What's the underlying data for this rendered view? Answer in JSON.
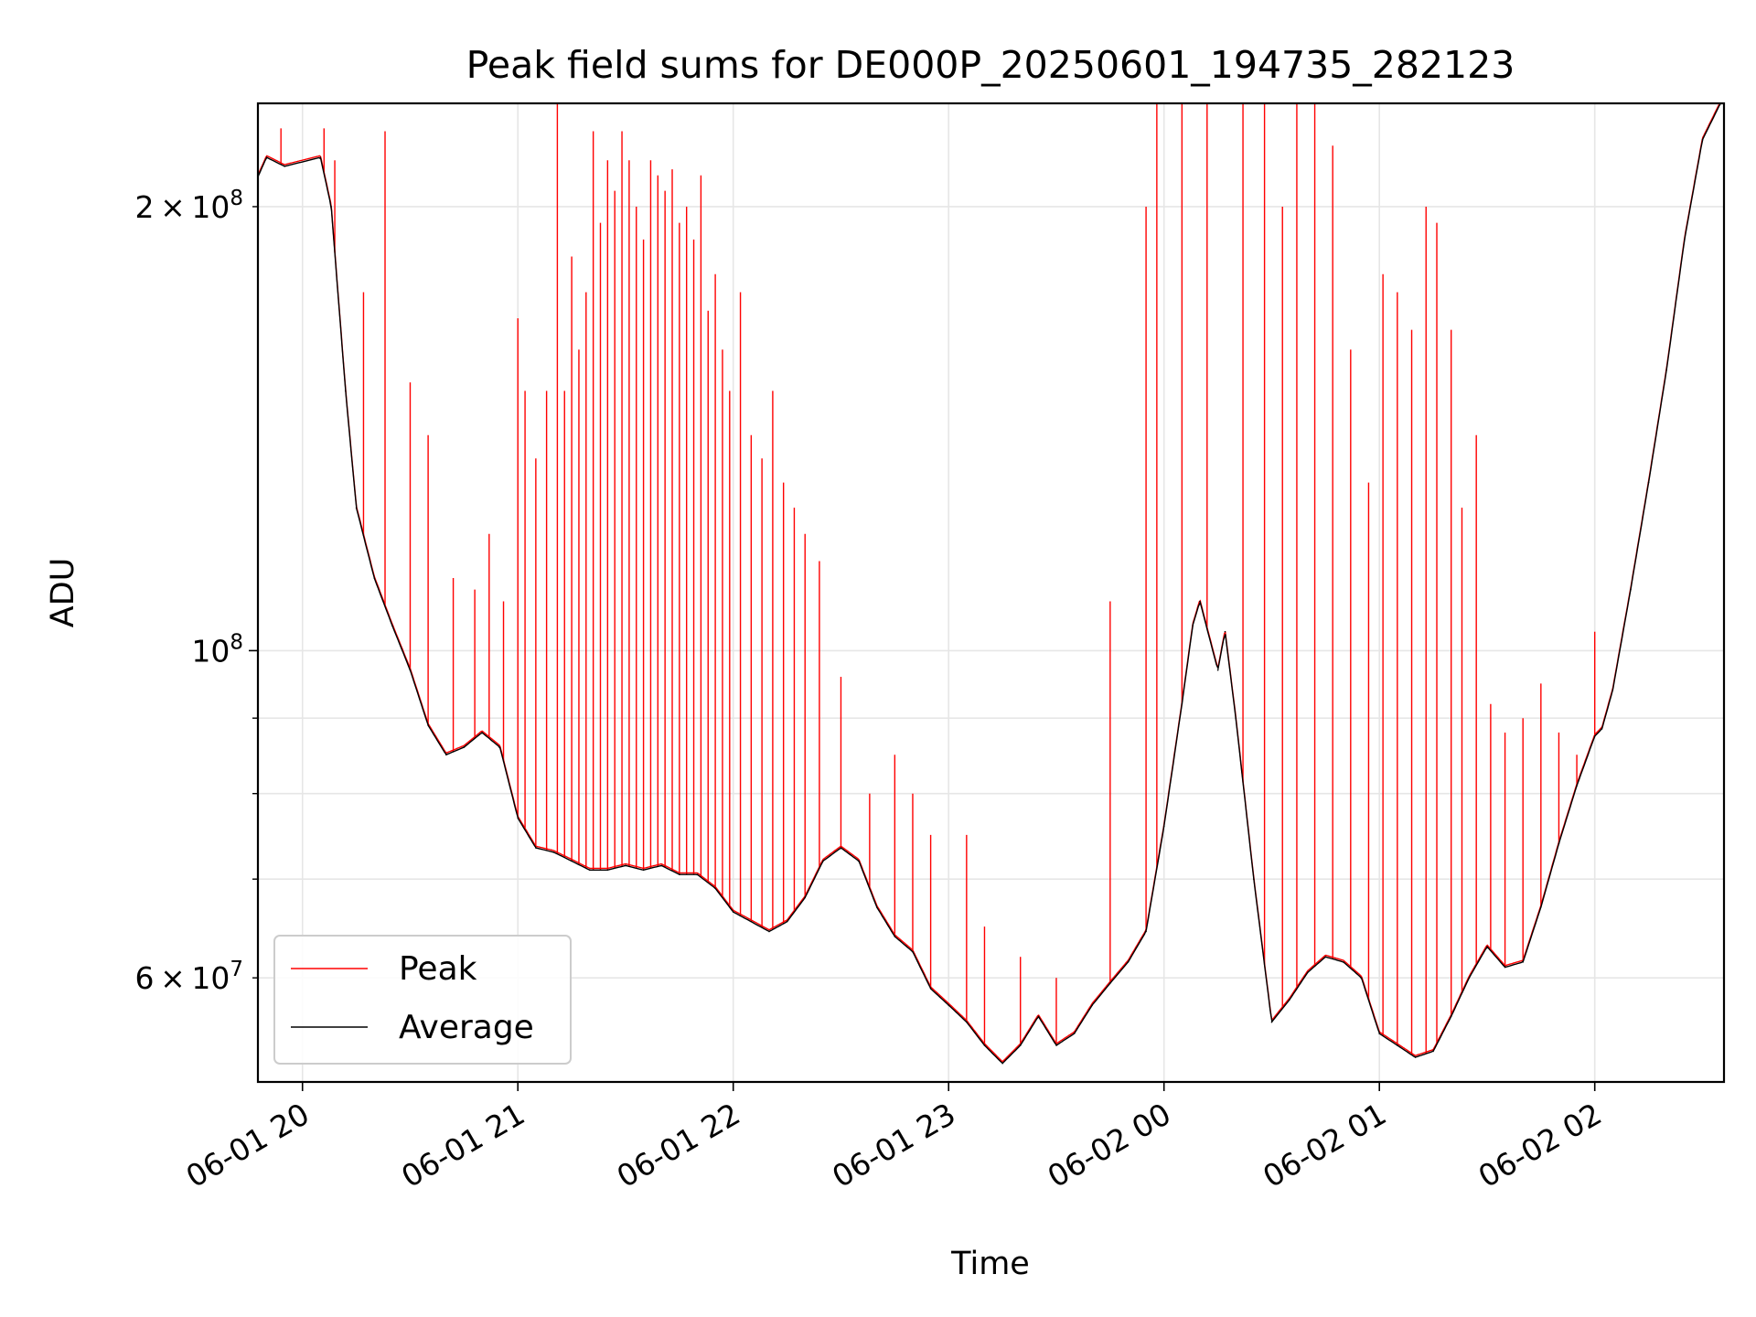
{
  "chart_data": {
    "type": "line",
    "title": "Peak field sums for DE000P_20250601_194735_282123",
    "xlabel": "Time",
    "ylabel": "ADU",
    "x_range": [
      "2025-06-01 19:47:35",
      "2025-06-02 02:36:00"
    ],
    "ylim": [
      51000000,
      235000000
    ],
    "yscale": "log",
    "grid": true,
    "legend_position": "lower-left",
    "x_ticks": [
      "06-01 20",
      "06-01 21",
      "06-01 22",
      "06-01 23",
      "06-02 00",
      "06-02 01",
      "06-02 02"
    ],
    "y_ticks_major": [
      {
        "value": 100000000,
        "mantissa": "",
        "base": "10",
        "exp": "8"
      }
    ],
    "y_ticks_minor_labeled": [
      {
        "value": 200000000,
        "mantissa": "2",
        "base": "10",
        "exp": "8"
      },
      {
        "value": 60000000,
        "mantissa": "6",
        "base": "10",
        "exp": "7"
      }
    ],
    "y_ticks_minor_unlabeled": [
      70000000,
      80000000,
      90000000
    ],
    "series": [
      {
        "name": "Average",
        "color": "#000000",
        "points": [
          [
            "2025-06-01 19:47",
            208000000
          ],
          [
            "2025-06-01 19:50",
            216000000
          ],
          [
            "2025-06-01 19:55",
            213000000
          ],
          [
            "2025-06-01 20:05",
            216000000
          ],
          [
            "2025-06-01 20:08",
            200000000
          ],
          [
            "2025-06-01 20:12",
            150000000
          ],
          [
            "2025-06-01 20:15",
            125000000
          ],
          [
            "2025-06-01 20:20",
            112000000
          ],
          [
            "2025-06-01 20:25",
            104000000
          ],
          [
            "2025-06-01 20:30",
            97000000
          ],
          [
            "2025-06-01 20:35",
            89000000
          ],
          [
            "2025-06-01 20:40",
            85000000
          ],
          [
            "2025-06-01 20:45",
            86000000
          ],
          [
            "2025-06-01 20:50",
            88000000
          ],
          [
            "2025-06-01 20:55",
            86000000
          ],
          [
            "2025-06-01 21:00",
            77000000
          ],
          [
            "2025-06-01 21:05",
            73500000
          ],
          [
            "2025-06-01 21:10",
            73000000
          ],
          [
            "2025-06-01 21:15",
            72000000
          ],
          [
            "2025-06-01 21:20",
            71000000
          ],
          [
            "2025-06-01 21:25",
            71000000
          ],
          [
            "2025-06-01 21:30",
            71500000
          ],
          [
            "2025-06-01 21:35",
            71000000
          ],
          [
            "2025-06-01 21:40",
            71500000
          ],
          [
            "2025-06-01 21:45",
            70500000
          ],
          [
            "2025-06-01 21:50",
            70500000
          ],
          [
            "2025-06-01 21:55",
            69000000
          ],
          [
            "2025-06-01 22:00",
            66500000
          ],
          [
            "2025-06-01 22:05",
            65500000
          ],
          [
            "2025-06-01 22:10",
            64500000
          ],
          [
            "2025-06-01 22:15",
            65500000
          ],
          [
            "2025-06-01 22:20",
            68000000
          ],
          [
            "2025-06-01 22:25",
            72000000
          ],
          [
            "2025-06-01 22:30",
            73500000
          ],
          [
            "2025-06-01 22:35",
            72000000
          ],
          [
            "2025-06-01 22:40",
            67000000
          ],
          [
            "2025-06-01 22:45",
            64000000
          ],
          [
            "2025-06-01 22:50",
            62500000
          ],
          [
            "2025-06-01 22:55",
            59000000
          ],
          [
            "2025-06-01 23:00",
            57500000
          ],
          [
            "2025-06-01 23:05",
            56000000
          ],
          [
            "2025-06-01 23:10",
            54000000
          ],
          [
            "2025-06-01 23:15",
            52500000
          ],
          [
            "2025-06-01 23:20",
            54000000
          ],
          [
            "2025-06-01 23:25",
            56500000
          ],
          [
            "2025-06-01 23:30",
            54000000
          ],
          [
            "2025-06-01 23:35",
            55000000
          ],
          [
            "2025-06-01 23:40",
            57500000
          ],
          [
            "2025-06-01 23:45",
            59500000
          ],
          [
            "2025-06-01 23:50",
            61500000
          ],
          [
            "2025-06-01 23:55",
            64500000
          ],
          [
            "2025-06-02 00:00",
            76000000
          ],
          [
            "2025-06-02 00:05",
            92000000
          ],
          [
            "2025-06-02 00:08",
            104000000
          ],
          [
            "2025-06-02 00:10",
            108000000
          ],
          [
            "2025-06-02 00:15",
            97000000
          ],
          [
            "2025-06-02 00:17",
            103000000
          ],
          [
            "2025-06-02 00:20",
            90000000
          ],
          [
            "2025-06-02 00:25",
            70000000
          ],
          [
            "2025-06-02 00:30",
            56000000
          ],
          [
            "2025-06-02 00:35",
            58000000
          ],
          [
            "2025-06-02 00:40",
            60500000
          ],
          [
            "2025-06-02 00:45",
            62000000
          ],
          [
            "2025-06-02 00:50",
            61500000
          ],
          [
            "2025-06-02 00:55",
            60000000
          ],
          [
            "2025-06-02 01:00",
            55000000
          ],
          [
            "2025-06-02 01:05",
            54000000
          ],
          [
            "2025-06-02 01:10",
            53000000
          ],
          [
            "2025-06-02 01:15",
            53500000
          ],
          [
            "2025-06-02 01:20",
            56500000
          ],
          [
            "2025-06-02 01:25",
            60000000
          ],
          [
            "2025-06-02 01:30",
            63000000
          ],
          [
            "2025-06-02 01:35",
            61000000
          ],
          [
            "2025-06-02 01:40",
            61500000
          ],
          [
            "2025-06-02 01:45",
            67000000
          ],
          [
            "2025-06-02 01:50",
            74000000
          ],
          [
            "2025-06-02 01:55",
            81000000
          ],
          [
            "2025-06-02 02:00",
            87500000
          ],
          [
            "2025-06-02 02:02",
            88500000
          ],
          [
            "2025-06-02 02:05",
            94000000
          ],
          [
            "2025-06-02 02:10",
            110000000
          ],
          [
            "2025-06-02 02:15",
            130000000
          ],
          [
            "2025-06-02 02:20",
            155000000
          ],
          [
            "2025-06-02 02:25",
            190000000
          ],
          [
            "2025-06-02 02:30",
            222000000
          ],
          [
            "2025-06-02 02:35",
            235000000
          ]
        ]
      },
      {
        "name": "Peak",
        "color": "#ff0000",
        "spikes": [
          [
            "2025-06-01 19:54",
            226000000
          ],
          [
            "2025-06-01 20:06",
            226000000
          ],
          [
            "2025-06-01 20:09",
            215000000
          ],
          [
            "2025-06-01 20:17",
            175000000
          ],
          [
            "2025-06-01 20:23",
            225000000
          ],
          [
            "2025-06-01 20:30",
            152000000
          ],
          [
            "2025-06-01 20:35",
            140000000
          ],
          [
            "2025-06-01 20:42",
            112000000
          ],
          [
            "2025-06-01 20:48",
            110000000
          ],
          [
            "2025-06-01 20:52",
            120000000
          ],
          [
            "2025-06-01 20:56",
            108000000
          ],
          [
            "2025-06-01 21:00",
            168000000
          ],
          [
            "2025-06-01 21:02",
            150000000
          ],
          [
            "2025-06-01 21:05",
            135000000
          ],
          [
            "2025-06-01 21:08",
            150000000
          ],
          [
            "2025-06-01 21:11",
            235000000
          ],
          [
            "2025-06-01 21:13",
            150000000
          ],
          [
            "2025-06-01 21:15",
            185000000
          ],
          [
            "2025-06-01 21:17",
            160000000
          ],
          [
            "2025-06-01 21:19",
            175000000
          ],
          [
            "2025-06-01 21:21",
            225000000
          ],
          [
            "2025-06-01 21:23",
            195000000
          ],
          [
            "2025-06-01 21:25",
            215000000
          ],
          [
            "2025-06-01 21:27",
            205000000
          ],
          [
            "2025-06-01 21:29",
            225000000
          ],
          [
            "2025-06-01 21:31",
            215000000
          ],
          [
            "2025-06-01 21:33",
            200000000
          ],
          [
            "2025-06-01 21:35",
            190000000
          ],
          [
            "2025-06-01 21:37",
            215000000
          ],
          [
            "2025-06-01 21:39",
            210000000
          ],
          [
            "2025-06-01 21:41",
            205000000
          ],
          [
            "2025-06-01 21:43",
            212000000
          ],
          [
            "2025-06-01 21:45",
            195000000
          ],
          [
            "2025-06-01 21:47",
            200000000
          ],
          [
            "2025-06-01 21:49",
            190000000
          ],
          [
            "2025-06-01 21:51",
            210000000
          ],
          [
            "2025-06-01 21:53",
            170000000
          ],
          [
            "2025-06-01 21:55",
            180000000
          ],
          [
            "2025-06-01 21:57",
            160000000
          ],
          [
            "2025-06-01 21:59",
            150000000
          ],
          [
            "2025-06-01 22:02",
            175000000
          ],
          [
            "2025-06-01 22:05",
            140000000
          ],
          [
            "2025-06-01 22:08",
            135000000
          ],
          [
            "2025-06-01 22:11",
            150000000
          ],
          [
            "2025-06-01 22:14",
            130000000
          ],
          [
            "2025-06-01 22:17",
            125000000
          ],
          [
            "2025-06-01 22:20",
            120000000
          ],
          [
            "2025-06-01 22:24",
            115000000
          ],
          [
            "2025-06-01 22:30",
            96000000
          ],
          [
            "2025-06-01 22:38",
            80000000
          ],
          [
            "2025-06-01 22:45",
            85000000
          ],
          [
            "2025-06-01 22:50",
            80000000
          ],
          [
            "2025-06-01 22:55",
            75000000
          ],
          [
            "2025-06-01 23:05",
            75000000
          ],
          [
            "2025-06-01 23:10",
            65000000
          ],
          [
            "2025-06-01 23:20",
            62000000
          ],
          [
            "2025-06-01 23:30",
            60000000
          ],
          [
            "2025-06-01 23:45",
            108000000
          ],
          [
            "2025-06-01 23:55",
            200000000
          ],
          [
            "2025-06-01 23:58",
            235000000
          ],
          [
            "2025-06-02 00:05",
            235000000
          ],
          [
            "2025-06-02 00:12",
            235000000
          ],
          [
            "2025-06-02 00:22",
            235000000
          ],
          [
            "2025-06-02 00:28",
            235000000
          ],
          [
            "2025-06-02 00:33",
            200000000
          ],
          [
            "2025-06-02 00:37",
            235000000
          ],
          [
            "2025-06-02 00:42",
            235000000
          ],
          [
            "2025-06-02 00:47",
            220000000
          ],
          [
            "2025-06-02 00:52",
            160000000
          ],
          [
            "2025-06-02 00:57",
            130000000
          ],
          [
            "2025-06-02 01:01",
            180000000
          ],
          [
            "2025-06-02 01:05",
            175000000
          ],
          [
            "2025-06-02 01:09",
            165000000
          ],
          [
            "2025-06-02 01:13",
            200000000
          ],
          [
            "2025-06-02 01:16",
            195000000
          ],
          [
            "2025-06-02 01:20",
            165000000
          ],
          [
            "2025-06-02 01:23",
            125000000
          ],
          [
            "2025-06-02 01:27",
            140000000
          ],
          [
            "2025-06-02 01:31",
            92000000
          ],
          [
            "2025-06-02 01:35",
            88000000
          ],
          [
            "2025-06-02 01:40",
            90000000
          ],
          [
            "2025-06-02 01:45",
            95000000
          ],
          [
            "2025-06-02 01:50",
            88000000
          ],
          [
            "2025-06-02 01:55",
            85000000
          ],
          [
            "2025-06-02 02:00",
            103000000
          ]
        ]
      }
    ]
  },
  "legend": {
    "items": [
      {
        "label": "Peak",
        "color": "#ff0000"
      },
      {
        "label": "Average",
        "color": "#000000"
      }
    ]
  },
  "grid_color": "#e6e6e6"
}
